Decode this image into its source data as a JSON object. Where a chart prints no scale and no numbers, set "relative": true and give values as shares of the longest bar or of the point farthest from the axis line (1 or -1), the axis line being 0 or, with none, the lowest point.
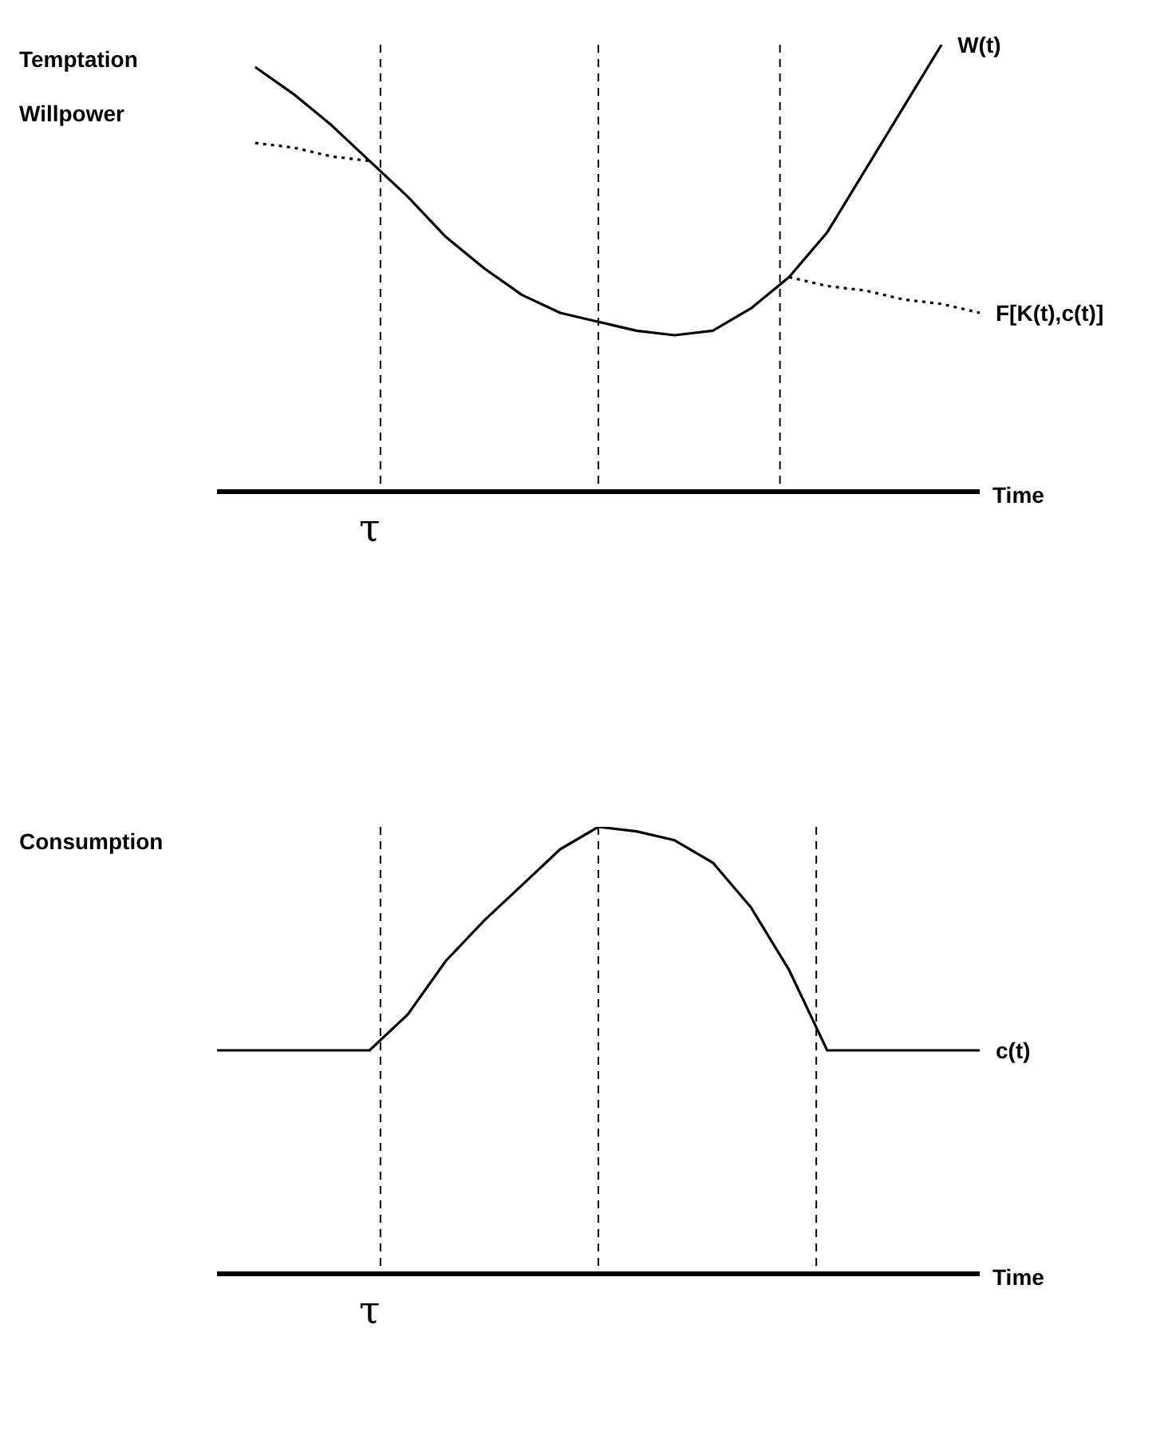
{
  "chart_data": [
    {
      "type": "line",
      "ylabel": "Temptation\nWillpower",
      "xlabel": "Time",
      "relative": true,
      "legend": false,
      "grid": "x",
      "categories": [
        null,
        null,
        null,
        null,
        null,
        null,
        null,
        null,
        null,
        null,
        null,
        null,
        null,
        null,
        null,
        null,
        null,
        null,
        null,
        null,
        null
      ],
      "annotations": [
        "τ"
      ],
      "series": [
        {
          "name": "W(t)",
          "color": "#000000",
          "line_style": "solid",
          "values": [
            null,
            0.95,
            0.89,
            0.82,
            0.74,
            0.66,
            0.57,
            0.5,
            0.44,
            0.4,
            0.38,
            0.36,
            0.35,
            0.36,
            0.41,
            0.48,
            0.58,
            0.72,
            0.86,
            1,
            null
          ]
        },
        {
          "name": "F[K(t),c(t)]",
          "color": "#000000",
          "line_style": "dotted",
          "values": [
            null,
            0.78,
            0.77,
            0.75,
            0.74,
            null,
            null,
            null,
            null,
            null,
            null,
            null,
            null,
            null,
            null,
            0.48,
            0.46,
            0.45,
            0.43,
            0.42,
            0.4
          ]
        }
      ]
    },
    {
      "type": "line",
      "ylabel": "Consumption",
      "xlabel": "Time",
      "relative": true,
      "legend": false,
      "grid": "x",
      "categories": [
        null,
        null,
        null,
        null,
        null,
        null,
        null,
        null,
        null,
        null,
        null,
        null,
        null,
        null,
        null,
        null,
        null,
        null,
        null,
        null,
        null
      ],
      "annotations": [
        "τ"
      ],
      "series": [
        {
          "name": "c(t)",
          "color": "#000000",
          "line_style": "solid",
          "values": [
            0.5,
            0.5,
            0.5,
            0.5,
            0.5,
            0.58,
            0.7,
            0.79,
            0.87,
            0.95,
            1,
            0.99,
            0.97,
            0.92,
            0.82,
            0.68,
            0.5,
            0.5,
            0.5,
            0.5,
            0.5
          ]
        }
      ]
    }
  ]
}
